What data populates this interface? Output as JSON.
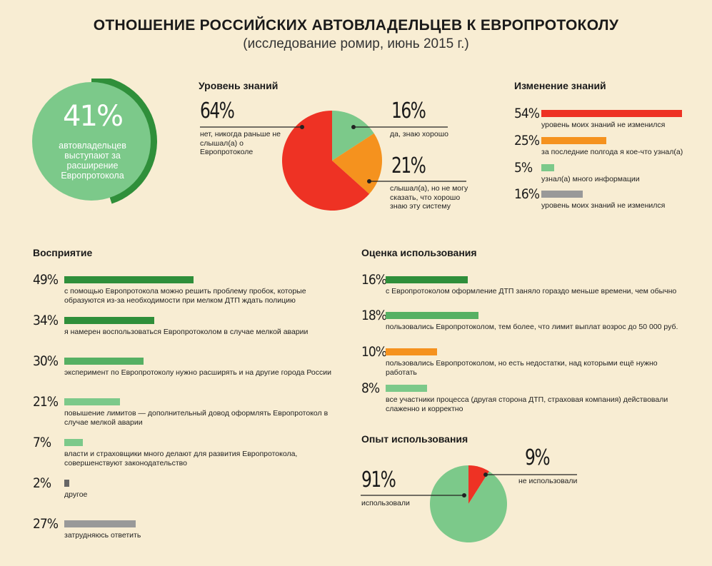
{
  "header": {
    "title": "ОТНОШЕНИЕ РОССИЙСКИХ АВТОВЛАДЕЛЬЦЕВ К ЕВРОПРОТОКОЛУ",
    "subtitle": "(исследование ромир, июнь 2015 г.)"
  },
  "circle": {
    "value": "41%",
    "text": "автовладельцев выступают за расширение Европротокола"
  },
  "colors": {
    "red": "#ee3224",
    "orange": "#f5921e",
    "light_green": "#7cc98a",
    "dark_green": "#2f8f3a",
    "mid_green": "#56b063",
    "gray": "#999999",
    "dark_gray": "#666666",
    "background": "#f8edd3"
  },
  "knowledge": {
    "title": "Уровень знаний",
    "labels": [
      {
        "pct": "64%",
        "text": "нет, никогда раньше не слышал(а) о Европротоколе"
      },
      {
        "pct": "16%",
        "text": "да, знаю хорошо"
      },
      {
        "pct": "21%",
        "text": "слышал(а), но не могу сказать, что хорошо знаю эту систему"
      }
    ]
  },
  "change": {
    "title": "Изменение знаний",
    "items": [
      {
        "pct": "54%",
        "text": "уровень моих знаний не изменился",
        "value": 54,
        "color": "red"
      },
      {
        "pct": "25%",
        "text": "за последние полгода я кое-что узнал(а)",
        "value": 25,
        "color": "orange"
      },
      {
        "pct": "5%",
        "text": "узнал(а) много информации",
        "value": 5,
        "color": "light_green"
      },
      {
        "pct": "16%",
        "text": "уровень моих знаний не изменился",
        "value": 16,
        "color": "gray"
      }
    ]
  },
  "perception": {
    "title": "Восприятие",
    "items": [
      {
        "pct": "49%",
        "text": "с помощью Европротокола можно решить проблему пробок, которые образуются из-за необходимости при мелком ДТП ждать полицию",
        "value": 49,
        "color": "dark_green"
      },
      {
        "pct": "34%",
        "text": "я намерен воспользоваться Европротоколом в случае мелкой аварии",
        "value": 34,
        "color": "dark_green"
      },
      {
        "pct": "30%",
        "text": "эксперимент по Европротоколу нужно расширять и на другие города России",
        "value": 30,
        "color": "mid_green"
      },
      {
        "pct": "21%",
        "text": "повышение лимитов — дополнительный довод оформлять Европротокол в случае мелкой аварии",
        "value": 21,
        "color": "light_green"
      },
      {
        "pct": "7%",
        "text": "власти и страховщики много делают для развития Европротокола, совершенствуют законодательство",
        "value": 7,
        "color": "light_green"
      },
      {
        "pct": "2%",
        "text": "другое",
        "value": 2,
        "color": "dark_gray"
      },
      {
        "pct": "27%",
        "text": "затрудняюсь ответить",
        "value": 27,
        "color": "gray"
      }
    ]
  },
  "evaluation": {
    "title": "Оценка использования",
    "items": [
      {
        "pct": "16%",
        "text": "с Европротоколом оформление ДТП заняло гораздо меньше времени, чем обычно",
        "value": 16,
        "color": "dark_green"
      },
      {
        "pct": "18%",
        "text": "пользовались Европротоколом, тем более, что лимит выплат возрос до 50 000 руб.",
        "value": 18,
        "color": "mid_green"
      },
      {
        "pct": "10%",
        "text": "пользовались Европротоколом, но есть недостатки, над которыми ещё нужно работать",
        "value": 10,
        "color": "orange"
      },
      {
        "pct": "8%",
        "text": "все участники процесса (другая сторона ДТП, страховая компания) действовали слаженно и корректно",
        "value": 8,
        "color": "light_green"
      }
    ]
  },
  "experience": {
    "title": "Опыт использования",
    "labels": [
      {
        "pct": "91%",
        "text": "использовали"
      },
      {
        "pct": "9%",
        "text": "не использовали"
      }
    ]
  },
  "chart_data": [
    {
      "type": "pie",
      "title": "Уровень знаний",
      "categories": [
        "нет, никогда раньше не слышал(а) о Европротоколе",
        "да, знаю хорошо",
        "слышал(а), но не могу сказать, что хорошо знаю эту систему"
      ],
      "values": [
        64,
        16,
        21
      ],
      "colors": [
        "#ee3224",
        "#7cc98a",
        "#f5921e"
      ]
    },
    {
      "type": "bar",
      "title": "Изменение знаний",
      "categories": [
        "уровень моих знаний не изменился",
        "за последние полгода я кое-что узнал(а)",
        "узнал(а) много информации",
        "уровень моих знаний не изменился"
      ],
      "values": [
        54,
        25,
        5,
        16
      ]
    },
    {
      "type": "bar",
      "title": "Восприятие",
      "categories": [
        "с помощью Европротокола можно решить проблему пробок",
        "я намерен воспользоваться Европротоколом в случае мелкой аварии",
        "эксперимент по Европротоколу нужно расширять и на другие города России",
        "повышение лимитов — дополнительный довод оформлять Европротокол",
        "власти и страховщики много делают для развития Европротокола",
        "другое",
        "затрудняюсь ответить"
      ],
      "values": [
        49,
        34,
        30,
        21,
        7,
        2,
        27
      ]
    },
    {
      "type": "bar",
      "title": "Оценка использования",
      "categories": [
        "с Европротоколом оформление ДТП заняло гораздо меньше времени",
        "пользовались Европротоколом, тем более, что лимит выплат возрос до 50 000 руб.",
        "пользовались Европротоколом, но есть недостатки",
        "все участники процесса действовали слаженно и корректно"
      ],
      "values": [
        16,
        18,
        10,
        8
      ]
    },
    {
      "type": "pie",
      "title": "Опыт использования",
      "categories": [
        "использовали",
        "не использовали"
      ],
      "values": [
        91,
        9
      ],
      "colors": [
        "#7cc98a",
        "#ee3224"
      ]
    },
    {
      "type": "pie",
      "categories": [
        "автовладельцев выступают за расширение Европротокола"
      ],
      "values": [
        41
      ]
    }
  ]
}
